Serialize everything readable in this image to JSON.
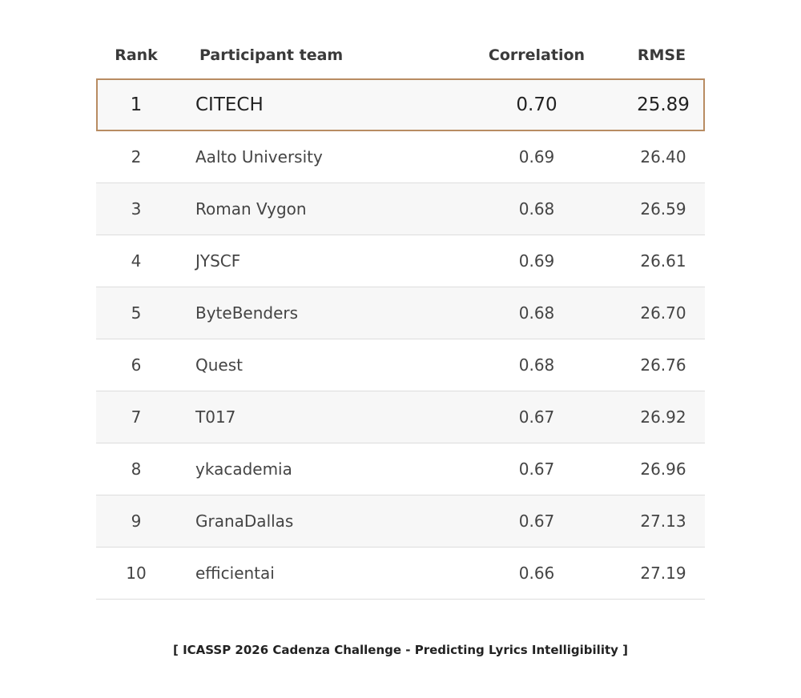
{
  "table": {
    "headers": {
      "rank": "Rank",
      "team": "Participant team",
      "correlation": "Correlation",
      "rmse": "RMSE"
    },
    "rows": [
      {
        "rank": "1",
        "team": "CITECH",
        "correlation": "0.70",
        "rmse": "25.89"
      },
      {
        "rank": "2",
        "team": "Aalto University",
        "correlation": "0.69",
        "rmse": "26.40"
      },
      {
        "rank": "3",
        "team": "Roman Vygon",
        "correlation": "0.68",
        "rmse": "26.59"
      },
      {
        "rank": "4",
        "team": "JYSCF",
        "correlation": "0.69",
        "rmse": "26.61"
      },
      {
        "rank": "5",
        "team": "ByteBenders",
        "correlation": "0.68",
        "rmse": "26.70"
      },
      {
        "rank": "6",
        "team": "Quest",
        "correlation": "0.68",
        "rmse": "26.76"
      },
      {
        "rank": "7",
        "team": "T017",
        "correlation": "0.67",
        "rmse": "26.92"
      },
      {
        "rank": "8",
        "team": "ykacademia",
        "correlation": "0.67",
        "rmse": "26.96"
      },
      {
        "rank": "9",
        "team": "GranaDallas",
        "correlation": "0.67",
        "rmse": "27.13"
      },
      {
        "rank": "10",
        "team": "efficientai",
        "correlation": "0.66",
        "rmse": "27.19"
      }
    ]
  },
  "caption": "[ ICASSP 2026 Cadenza Challenge - Predicting Lyrics Intelligibility ]",
  "colors": {
    "highlight_border": "#b88c62",
    "row_shade": "#f7f7f7",
    "divider": "#dddddd"
  }
}
